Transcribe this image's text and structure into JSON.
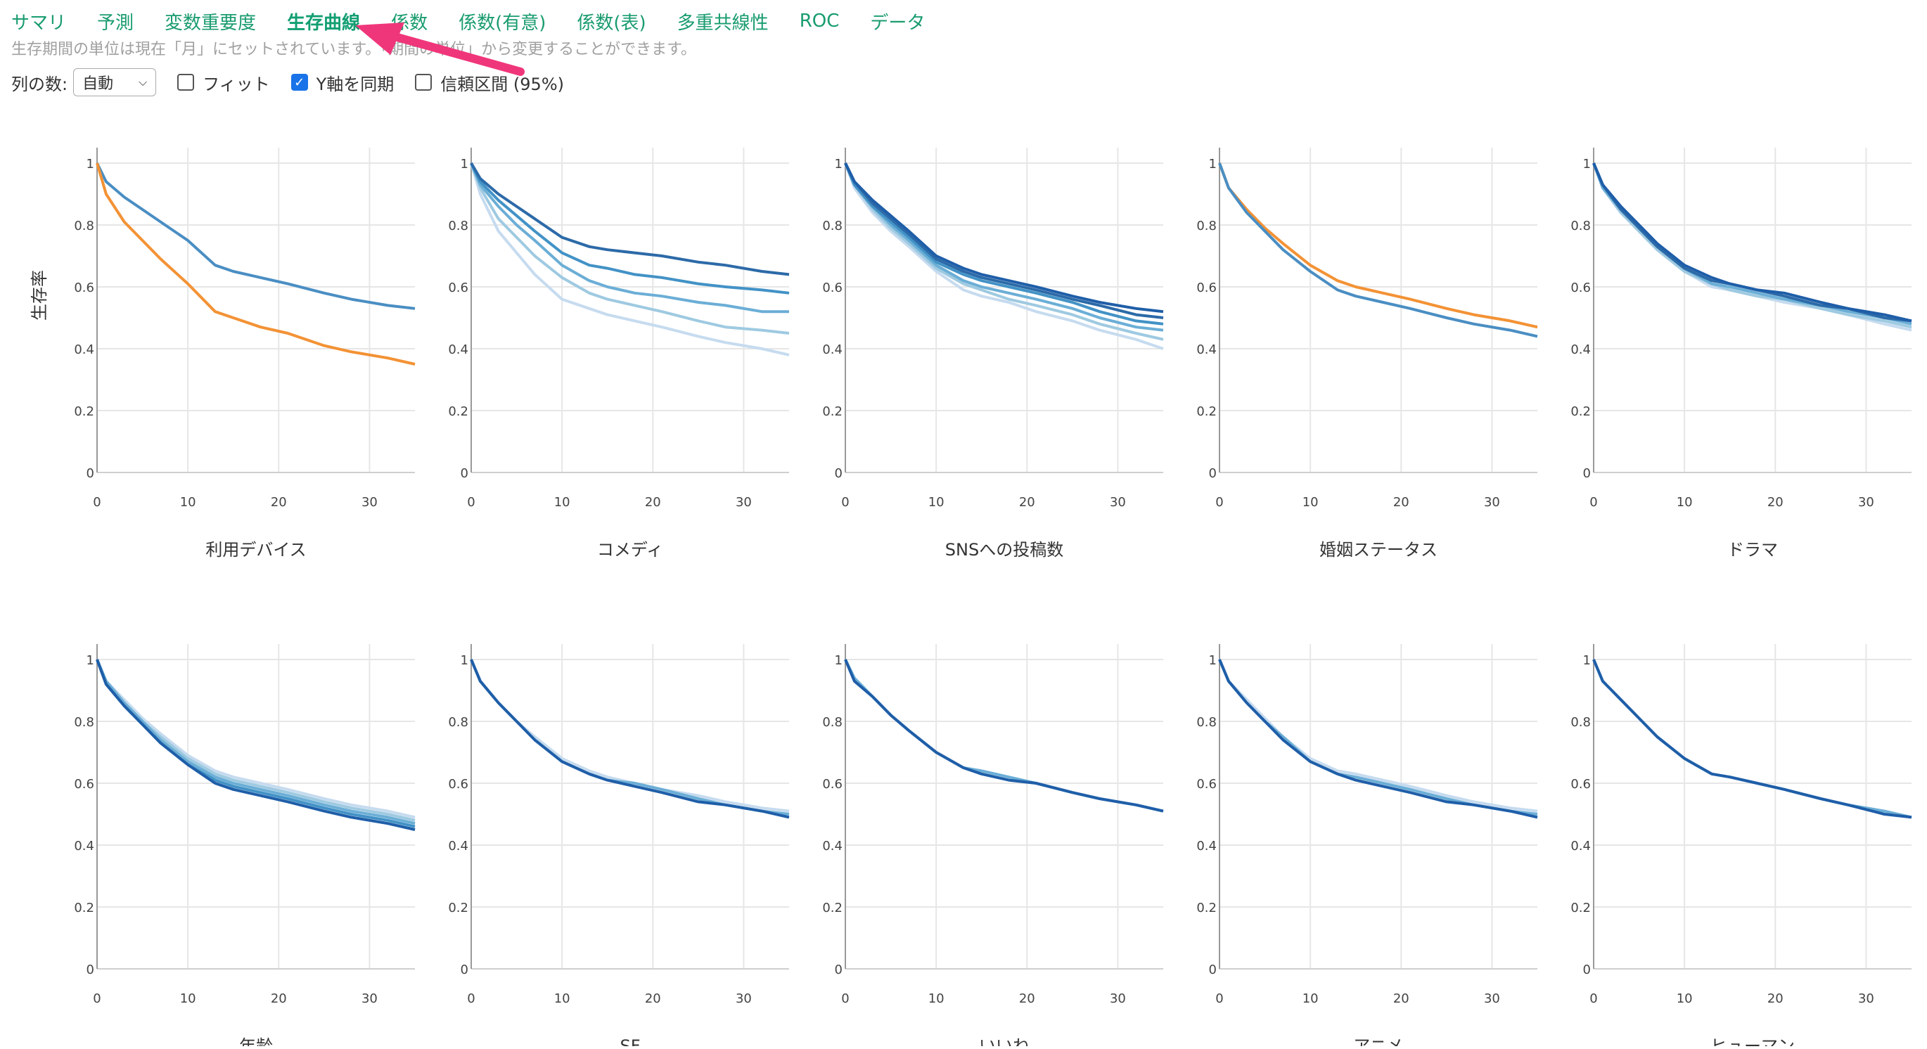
{
  "tabs": [
    {
      "label": "サマリ",
      "active": false
    },
    {
      "label": "予測",
      "active": false
    },
    {
      "label": "変数重要度",
      "active": false
    },
    {
      "label": "生存曲線",
      "active": true
    },
    {
      "label": "係数",
      "active": false
    },
    {
      "label": "係数(有意)",
      "active": false
    },
    {
      "label": "係数(表)",
      "active": false
    },
    {
      "label": "多重共線性",
      "active": false
    },
    {
      "label": "ROC",
      "active": false
    },
    {
      "label": "データ",
      "active": false
    }
  ],
  "info_text": "生存期間の単位は現在「月」にセットされています。「期間の単位」から変更することができます。",
  "controls": {
    "columns_label": "列の数:",
    "columns_value": "自動",
    "fit_label": "フィット",
    "fit_checked": false,
    "sync_y_label": "Y軸を同期",
    "sync_y_checked": true,
    "ci_label": "信頼区間 (95%)",
    "ci_checked": false
  },
  "colors": {
    "accent": "#1a9c6e",
    "arrow": "#f0367a",
    "blue_dark": "#1f5ea8",
    "orange": "#f39235"
  },
  "chart_data": {
    "type": "line",
    "ylabel": "生存率",
    "xlim": [
      0,
      35
    ],
    "ylim": [
      0,
      1
    ],
    "x_ticks": [
      0,
      10,
      20,
      30
    ],
    "y_ticks": [
      0,
      0.2,
      0.4,
      0.6,
      0.8,
      1
    ],
    "y_tick_labels": [
      "0",
      "0.2",
      "0.4",
      "0.6",
      "0.8",
      "1"
    ],
    "x": [
      0,
      1,
      3,
      5,
      7,
      10,
      13,
      15,
      18,
      21,
      25,
      28,
      32,
      35
    ],
    "panels": [
      {
        "title": "利用デバイス",
        "series": [
          {
            "color": "#4a8ec3",
            "values": [
              1,
              0.94,
              0.89,
              0.85,
              0.81,
              0.75,
              0.67,
              0.65,
              0.63,
              0.61,
              0.58,
              0.56,
              0.54,
              0.53
            ]
          },
          {
            "color": "#f39235",
            "values": [
              1,
              0.9,
              0.81,
              0.75,
              0.69,
              0.61,
              0.52,
              0.5,
              0.47,
              0.45,
              0.41,
              0.39,
              0.37,
              0.35
            ]
          }
        ]
      },
      {
        "title": "コメディ",
        "series": [
          {
            "color": "#c6dbef",
            "values": [
              1,
              0.9,
              0.78,
              0.71,
              0.64,
              0.56,
              0.53,
              0.51,
              0.49,
              0.47,
              0.44,
              0.42,
              0.4,
              0.38
            ]
          },
          {
            "color": "#9ecae1",
            "values": [
              1,
              0.92,
              0.82,
              0.76,
              0.7,
              0.63,
              0.58,
              0.56,
              0.54,
              0.52,
              0.49,
              0.47,
              0.46,
              0.45
            ]
          },
          {
            "color": "#6baed6",
            "values": [
              1,
              0.93,
              0.86,
              0.8,
              0.75,
              0.67,
              0.62,
              0.6,
              0.58,
              0.57,
              0.55,
              0.54,
              0.52,
              0.52
            ]
          },
          {
            "color": "#4292c6",
            "values": [
              1,
              0.94,
              0.88,
              0.83,
              0.78,
              0.71,
              0.67,
              0.66,
              0.64,
              0.63,
              0.61,
              0.6,
              0.59,
              0.58
            ]
          },
          {
            "color": "#2c6aa8",
            "values": [
              1,
              0.95,
              0.9,
              0.86,
              0.82,
              0.76,
              0.73,
              0.72,
              0.71,
              0.7,
              0.68,
              0.67,
              0.65,
              0.64
            ]
          }
        ]
      },
      {
        "title": "SNSへの投稿数",
        "series": [
          {
            "color": "#c6dbef",
            "values": [
              1,
              0.92,
              0.84,
              0.78,
              0.73,
              0.65,
              0.59,
              0.57,
              0.55,
              0.52,
              0.49,
              0.46,
              0.43,
              0.4
            ]
          },
          {
            "color": "#9ecae1",
            "values": [
              1,
              0.93,
              0.85,
              0.79,
              0.74,
              0.66,
              0.61,
              0.59,
              0.56,
              0.54,
              0.51,
              0.48,
              0.45,
              0.43
            ]
          },
          {
            "color": "#6baed6",
            "values": [
              1,
              0.93,
              0.86,
              0.8,
              0.75,
              0.67,
              0.62,
              0.6,
              0.58,
              0.56,
              0.53,
              0.5,
              0.47,
              0.46
            ]
          },
          {
            "color": "#4292c6",
            "values": [
              1,
              0.93,
              0.86,
              0.81,
              0.76,
              0.68,
              0.64,
              0.62,
              0.6,
              0.58,
              0.55,
              0.52,
              0.49,
              0.48
            ]
          },
          {
            "color": "#2c6aa8",
            "values": [
              1,
              0.94,
              0.87,
              0.82,
              0.77,
              0.69,
              0.65,
              0.63,
              0.61,
              0.59,
              0.56,
              0.54,
              0.51,
              0.5
            ]
          },
          {
            "color": "#1f5ea8",
            "values": [
              1,
              0.94,
              0.88,
              0.83,
              0.78,
              0.7,
              0.66,
              0.64,
              0.62,
              0.6,
              0.57,
              0.55,
              0.53,
              0.52
            ]
          }
        ]
      },
      {
        "title": "婚姻ステータス",
        "series": [
          {
            "color": "#f39235",
            "values": [
              1,
              0.92,
              0.85,
              0.79,
              0.74,
              0.67,
              0.62,
              0.6,
              0.58,
              0.56,
              0.53,
              0.51,
              0.49,
              0.47
            ]
          },
          {
            "color": "#4a8ec3",
            "values": [
              1,
              0.92,
              0.84,
              0.78,
              0.72,
              0.65,
              0.59,
              0.57,
              0.55,
              0.53,
              0.5,
              0.48,
              0.46,
              0.44
            ]
          }
        ]
      },
      {
        "title": "ドラマ",
        "series": [
          {
            "color": "#c6dbef",
            "values": [
              1,
              0.92,
              0.84,
              0.78,
              0.72,
              0.65,
              0.6,
              0.59,
              0.57,
              0.55,
              0.53,
              0.51,
              0.48,
              0.46
            ]
          },
          {
            "color": "#9ecae1",
            "values": [
              1,
              0.92,
              0.84,
              0.78,
              0.72,
              0.65,
              0.61,
              0.59,
              0.57,
              0.56,
              0.53,
              0.51,
              0.49,
              0.47
            ]
          },
          {
            "color": "#6baed6",
            "values": [
              1,
              0.92,
              0.85,
              0.79,
              0.73,
              0.66,
              0.61,
              0.6,
              0.58,
              0.56,
              0.54,
              0.52,
              0.5,
              0.48
            ]
          },
          {
            "color": "#2c6aa8",
            "values": [
              1,
              0.93,
              0.85,
              0.79,
              0.73,
              0.66,
              0.62,
              0.61,
              0.59,
              0.57,
              0.54,
              0.53,
              0.5,
              0.49
            ]
          },
          {
            "color": "#1f5ea8",
            "values": [
              1,
              0.93,
              0.86,
              0.8,
              0.74,
              0.67,
              0.63,
              0.61,
              0.59,
              0.58,
              0.55,
              0.53,
              0.51,
              0.49
            ]
          }
        ]
      },
      {
        "title": "年齢",
        "series": [
          {
            "color": "#c6dbef",
            "values": [
              1,
              0.93,
              0.87,
              0.81,
              0.76,
              0.69,
              0.64,
              0.62,
              0.6,
              0.58,
              0.55,
              0.53,
              0.51,
              0.49
            ]
          },
          {
            "color": "#9ecae1",
            "values": [
              1,
              0.93,
              0.86,
              0.8,
              0.75,
              0.68,
              0.63,
              0.61,
              0.59,
              0.57,
              0.54,
              0.52,
              0.5,
              0.48
            ]
          },
          {
            "color": "#6baed6",
            "values": [
              1,
              0.93,
              0.86,
              0.8,
              0.74,
              0.67,
              0.62,
              0.6,
              0.58,
              0.56,
              0.53,
              0.51,
              0.49,
              0.47
            ]
          },
          {
            "color": "#4292c6",
            "values": [
              1,
              0.92,
              0.85,
              0.79,
              0.73,
              0.66,
              0.61,
              0.59,
              0.57,
              0.55,
              0.52,
              0.5,
              0.48,
              0.46
            ]
          },
          {
            "color": "#1f5ea8",
            "values": [
              1,
              0.92,
              0.85,
              0.79,
              0.73,
              0.66,
              0.6,
              0.58,
              0.56,
              0.54,
              0.51,
              0.49,
              0.47,
              0.45
            ]
          }
        ]
      },
      {
        "title": "SF",
        "series": [
          {
            "color": "#c6dbef",
            "values": [
              1,
              0.93,
              0.86,
              0.8,
              0.75,
              0.68,
              0.64,
              0.62,
              0.6,
              0.58,
              0.56,
              0.54,
              0.52,
              0.51
            ]
          },
          {
            "color": "#6baed6",
            "values": [
              1,
              0.93,
              0.86,
              0.8,
              0.74,
              0.67,
              0.63,
              0.61,
              0.6,
              0.58,
              0.55,
              0.53,
              0.51,
              0.5
            ]
          },
          {
            "color": "#1f5ea8",
            "values": [
              1,
              0.93,
              0.86,
              0.8,
              0.74,
              0.67,
              0.63,
              0.61,
              0.59,
              0.57,
              0.54,
              0.53,
              0.51,
              0.49
            ]
          }
        ]
      },
      {
        "title": "いいね",
        "series": [
          {
            "color": "#6baed6",
            "values": [
              1,
              0.94,
              0.88,
              0.82,
              0.77,
              0.7,
              0.65,
              0.64,
              0.62,
              0.6,
              0.57,
              0.55,
              0.53,
              0.51
            ]
          },
          {
            "color": "#1f5ea8",
            "values": [
              1,
              0.93,
              0.88,
              0.82,
              0.77,
              0.7,
              0.65,
              0.63,
              0.61,
              0.6,
              0.57,
              0.55,
              0.53,
              0.51
            ]
          }
        ]
      },
      {
        "title": "アニメ",
        "series": [
          {
            "color": "#c6dbef",
            "values": [
              1,
              0.93,
              0.87,
              0.81,
              0.75,
              0.68,
              0.64,
              0.63,
              0.61,
              0.59,
              0.56,
              0.54,
              0.52,
              0.51
            ]
          },
          {
            "color": "#6baed6",
            "values": [
              1,
              0.93,
              0.86,
              0.8,
              0.75,
              0.67,
              0.63,
              0.62,
              0.6,
              0.58,
              0.55,
              0.53,
              0.51,
              0.5
            ]
          },
          {
            "color": "#1f5ea8",
            "values": [
              1,
              0.93,
              0.86,
              0.8,
              0.74,
              0.67,
              0.63,
              0.61,
              0.59,
              0.57,
              0.54,
              0.53,
              0.51,
              0.49
            ]
          }
        ]
      },
      {
        "title": "ヒューマン",
        "series": [
          {
            "color": "#6baed6",
            "values": [
              1,
              0.93,
              0.87,
              0.81,
              0.75,
              0.68,
              0.63,
              0.62,
              0.6,
              0.58,
              0.55,
              0.53,
              0.51,
              0.49
            ]
          },
          {
            "color": "#1f5ea8",
            "values": [
              1,
              0.93,
              0.87,
              0.81,
              0.75,
              0.68,
              0.63,
              0.62,
              0.6,
              0.58,
              0.55,
              0.53,
              0.5,
              0.49
            ]
          }
        ]
      }
    ]
  }
}
